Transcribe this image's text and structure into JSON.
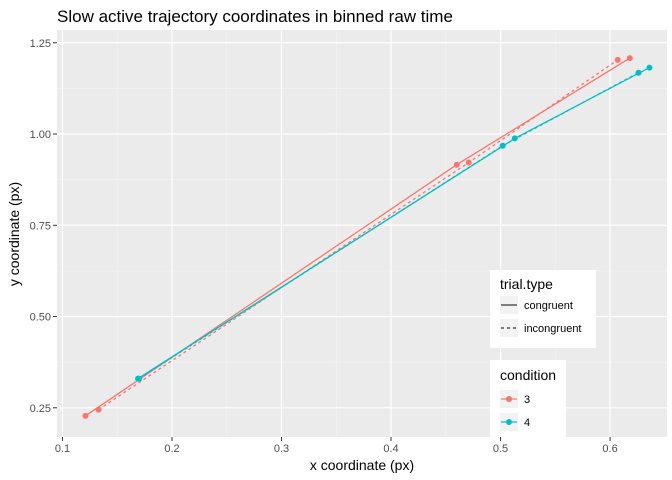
{
  "chart_data": {
    "type": "line",
    "title": "Slow active trajectory coordinates in binned raw time",
    "xlabel": "x coordinate (px)",
    "ylabel": "y coordinate (px)",
    "xlim": [
      0.095,
      0.652
    ],
    "ylim": [
      0.17,
      1.285
    ],
    "x_ticks": [
      0.1,
      0.2,
      0.3,
      0.4,
      0.5,
      0.6
    ],
    "x_tick_labels": [
      "0.1",
      "0.2",
      "0.3",
      "0.4",
      "0.5",
      "0.6"
    ],
    "y_ticks": [
      0.25,
      0.5,
      0.75,
      1.0,
      1.25
    ],
    "y_tick_labels": [
      "0.25",
      "0.50",
      "0.75",
      "1.00",
      "1.25"
    ],
    "grid": true,
    "legend_placement": "right-inside-bottom",
    "legends": [
      {
        "title": "trial.type",
        "entries": [
          {
            "label": "congruent",
            "linetype": "solid"
          },
          {
            "label": "incongruent",
            "linetype": "dashed"
          }
        ]
      },
      {
        "title": "condition",
        "entries": [
          {
            "label": "3",
            "color": "#f8766d"
          },
          {
            "label": "4",
            "color": "#00bfc4"
          }
        ]
      }
    ],
    "series": [
      {
        "condition": "3",
        "trial_type": "congruent",
        "color": "#f8766d",
        "linetype": "solid",
        "points": [
          [
            0.121,
            0.228
          ],
          [
            0.46,
            0.916
          ],
          [
            0.618,
            1.208
          ]
        ]
      },
      {
        "condition": "3",
        "trial_type": "incongruent",
        "color": "#f8766d",
        "linetype": "dashed",
        "points": [
          [
            0.133,
            0.245
          ],
          [
            0.471,
            0.922
          ],
          [
            0.607,
            1.203
          ]
        ]
      },
      {
        "condition": "4",
        "trial_type": "congruent",
        "color": "#00bfc4",
        "linetype": "solid",
        "points": [
          [
            0.169,
            0.33
          ],
          [
            0.513,
            0.988
          ],
          [
            0.636,
            1.182
          ]
        ]
      },
      {
        "condition": "4",
        "trial_type": "incongruent",
        "color": "#00bfc4",
        "linetype": "dashed",
        "points": [
          [
            0.17,
            0.33
          ],
          [
            0.502,
            0.968
          ],
          [
            0.626,
            1.168
          ]
        ]
      }
    ]
  }
}
